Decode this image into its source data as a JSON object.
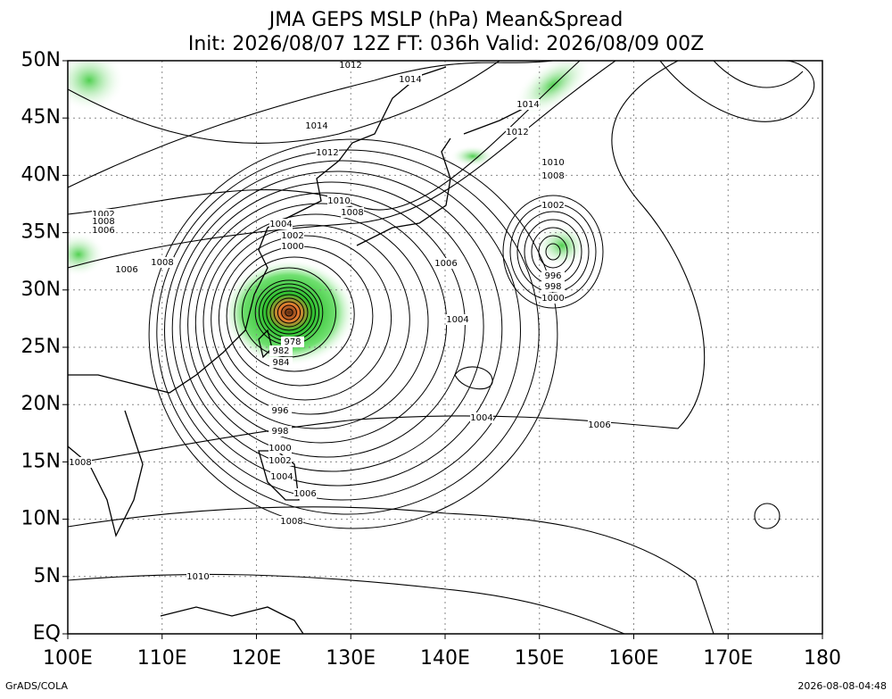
{
  "map": {
    "title": "JMA GEPS MSLP (hPa) Mean&Spread",
    "subtitle": "Init: 2026/08/07 12Z  FT: 036h  Valid: 2026/08/09 00Z",
    "lon_range": [
      100,
      180
    ],
    "lat_range": [
      0,
      50
    ],
    "lat_ticks": [
      {
        "value": 50,
        "label": "50N"
      },
      {
        "value": 45,
        "label": "45N"
      },
      {
        "value": 40,
        "label": "40N"
      },
      {
        "value": 35,
        "label": "35N"
      },
      {
        "value": 30,
        "label": "30N"
      },
      {
        "value": 25,
        "label": "25N"
      },
      {
        "value": 20,
        "label": "20N"
      },
      {
        "value": 15,
        "label": "15N"
      },
      {
        "value": 10,
        "label": "10N"
      },
      {
        "value": 5,
        "label": "5N"
      },
      {
        "value": 0,
        "label": "EQ"
      }
    ],
    "lon_ticks": [
      {
        "value": 100,
        "label": "100E"
      },
      {
        "value": 110,
        "label": "110E"
      },
      {
        "value": 120,
        "label": "120E"
      },
      {
        "value": 130,
        "label": "130E"
      },
      {
        "value": 140,
        "label": "140E"
      },
      {
        "value": 150,
        "label": "150E"
      },
      {
        "value": 160,
        "label": "160E"
      },
      {
        "value": 170,
        "label": "170E"
      },
      {
        "value": 180,
        "label": "180"
      }
    ],
    "contour_labels": [
      "1012",
      "1014",
      "1014",
      "1012",
      "1010",
      "1008",
      "1004",
      "1002",
      "1000",
      "1006",
      "1008",
      "1006",
      "1002",
      "1008",
      "1006",
      "1014",
      "1012",
      "1010",
      "1008",
      "1002",
      "996",
      "998",
      "1000",
      "1004",
      "1004",
      "1006",
      "996",
      "998",
      "1000",
      "1002",
      "1004",
      "1006",
      "1008",
      "1010",
      "1008",
      "978",
      "982",
      "984"
    ],
    "footer_left": "GrADS/COLA",
    "footer_right": "2026-08-08-04:48"
  }
}
